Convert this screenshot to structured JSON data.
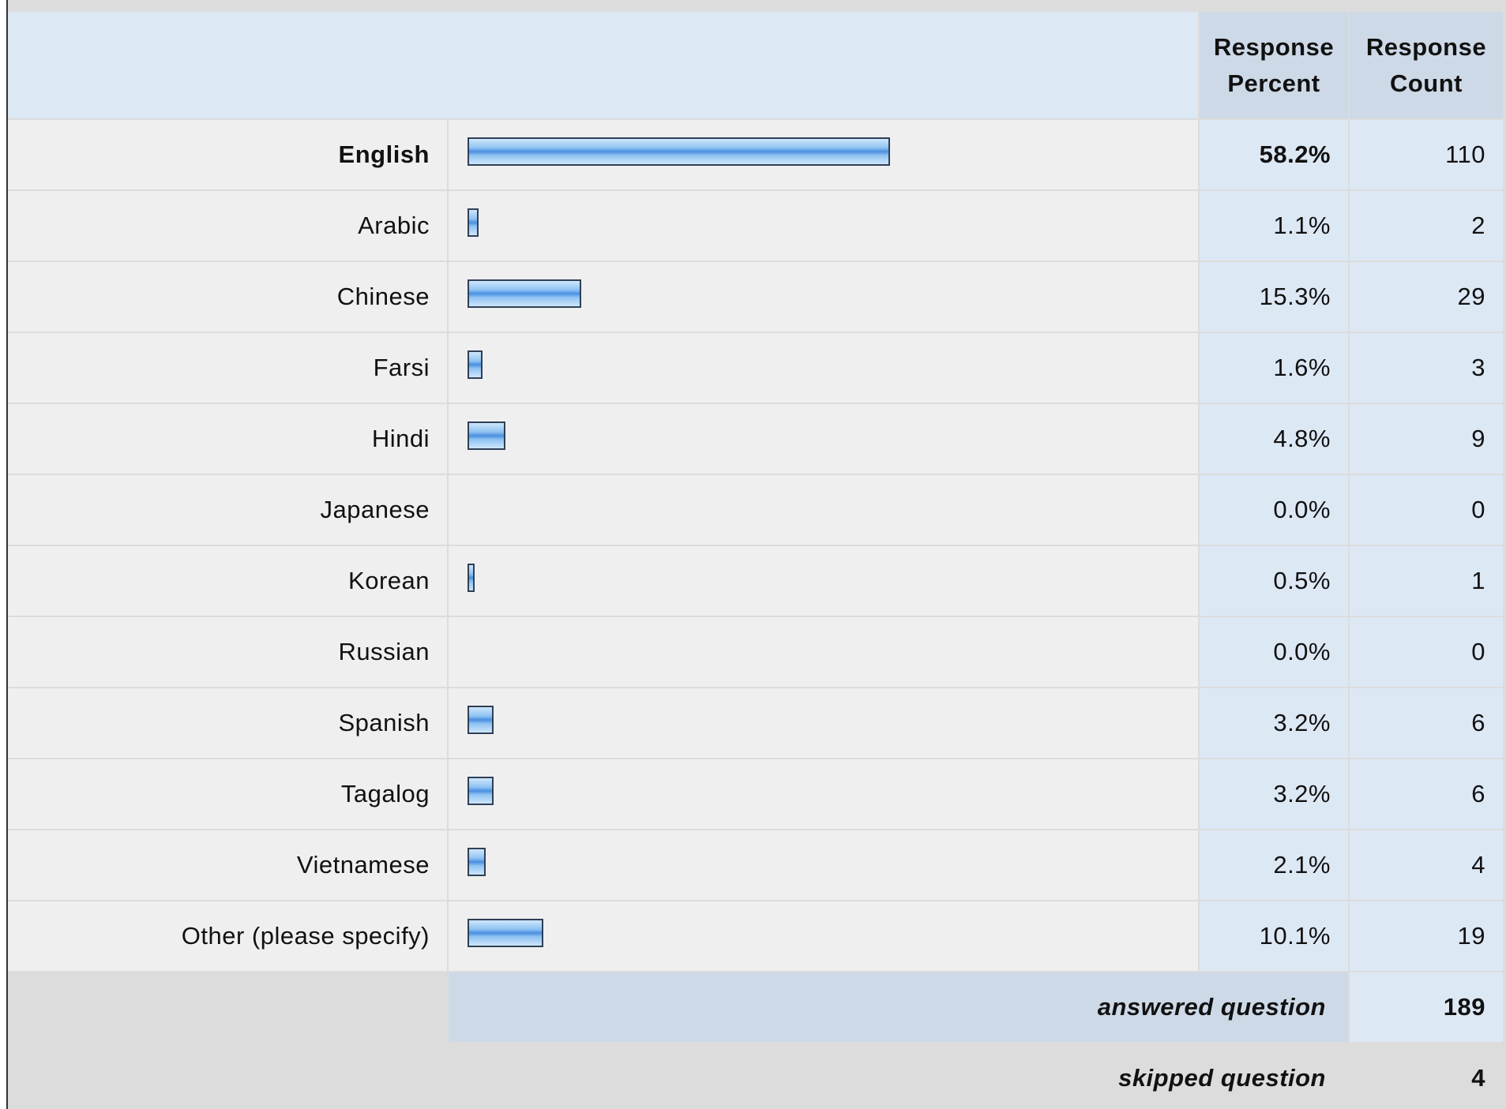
{
  "table": {
    "headers": [
      "Response Percent",
      "Response Count"
    ],
    "rows": [
      {
        "label": "English",
        "percent": 58.2,
        "percent_label": "58.2%",
        "count": 110
      },
      {
        "label": "Arabic",
        "percent": 1.1,
        "percent_label": "1.1%",
        "count": 2
      },
      {
        "label": "Chinese",
        "percent": 15.3,
        "percent_label": "15.3%",
        "count": 29
      },
      {
        "label": "Farsi",
        "percent": 1.6,
        "percent_label": "1.6%",
        "count": 3
      },
      {
        "label": "Hindi",
        "percent": 4.8,
        "percent_label": "4.8%",
        "count": 9
      },
      {
        "label": "Japanese",
        "percent": 0.0,
        "percent_label": "0.0%",
        "count": 0
      },
      {
        "label": "Korean",
        "percent": 0.5,
        "percent_label": "0.5%",
        "count": 1
      },
      {
        "label": "Russian",
        "percent": 0.0,
        "percent_label": "0.0%",
        "count": 0
      },
      {
        "label": "Spanish",
        "percent": 3.2,
        "percent_label": "3.2%",
        "count": 6
      },
      {
        "label": "Tagalog",
        "percent": 3.2,
        "percent_label": "3.2%",
        "count": 6
      },
      {
        "label": "Vietnamese",
        "percent": 2.1,
        "percent_label": "2.1%",
        "count": 4
      },
      {
        "label": "Other (please specify)",
        "percent": 10.1,
        "percent_label": "10.1%",
        "count": 19
      }
    ],
    "footer": [
      {
        "label": "answered question",
        "count": 189
      },
      {
        "label": "skipped question",
        "count": 4
      }
    ]
  }
}
